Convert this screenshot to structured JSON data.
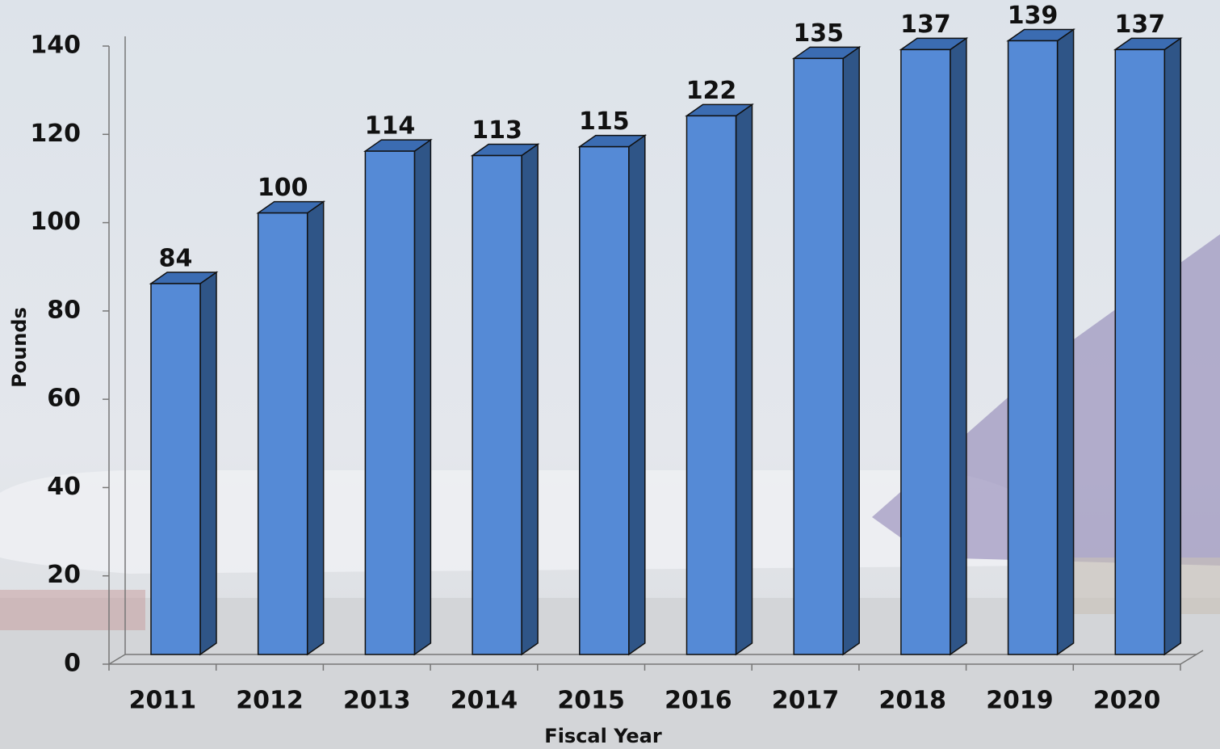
{
  "chart_data": {
    "type": "bar3d",
    "x_label": "Fiscal Year",
    "y_label": "Pounds",
    "categories": [
      "2011",
      "2012",
      "2013",
      "2014",
      "2015",
      "2016",
      "2017",
      "2018",
      "2019",
      "2020"
    ],
    "values": [
      84,
      100,
      114,
      113,
      115,
      122,
      135,
      137,
      139,
      137
    ],
    "color": "#558ad6",
    "ylim": [
      0,
      140
    ],
    "yticks": [
      0,
      20,
      40,
      60,
      80,
      100,
      120,
      140
    ],
    "data_labels": true
  }
}
